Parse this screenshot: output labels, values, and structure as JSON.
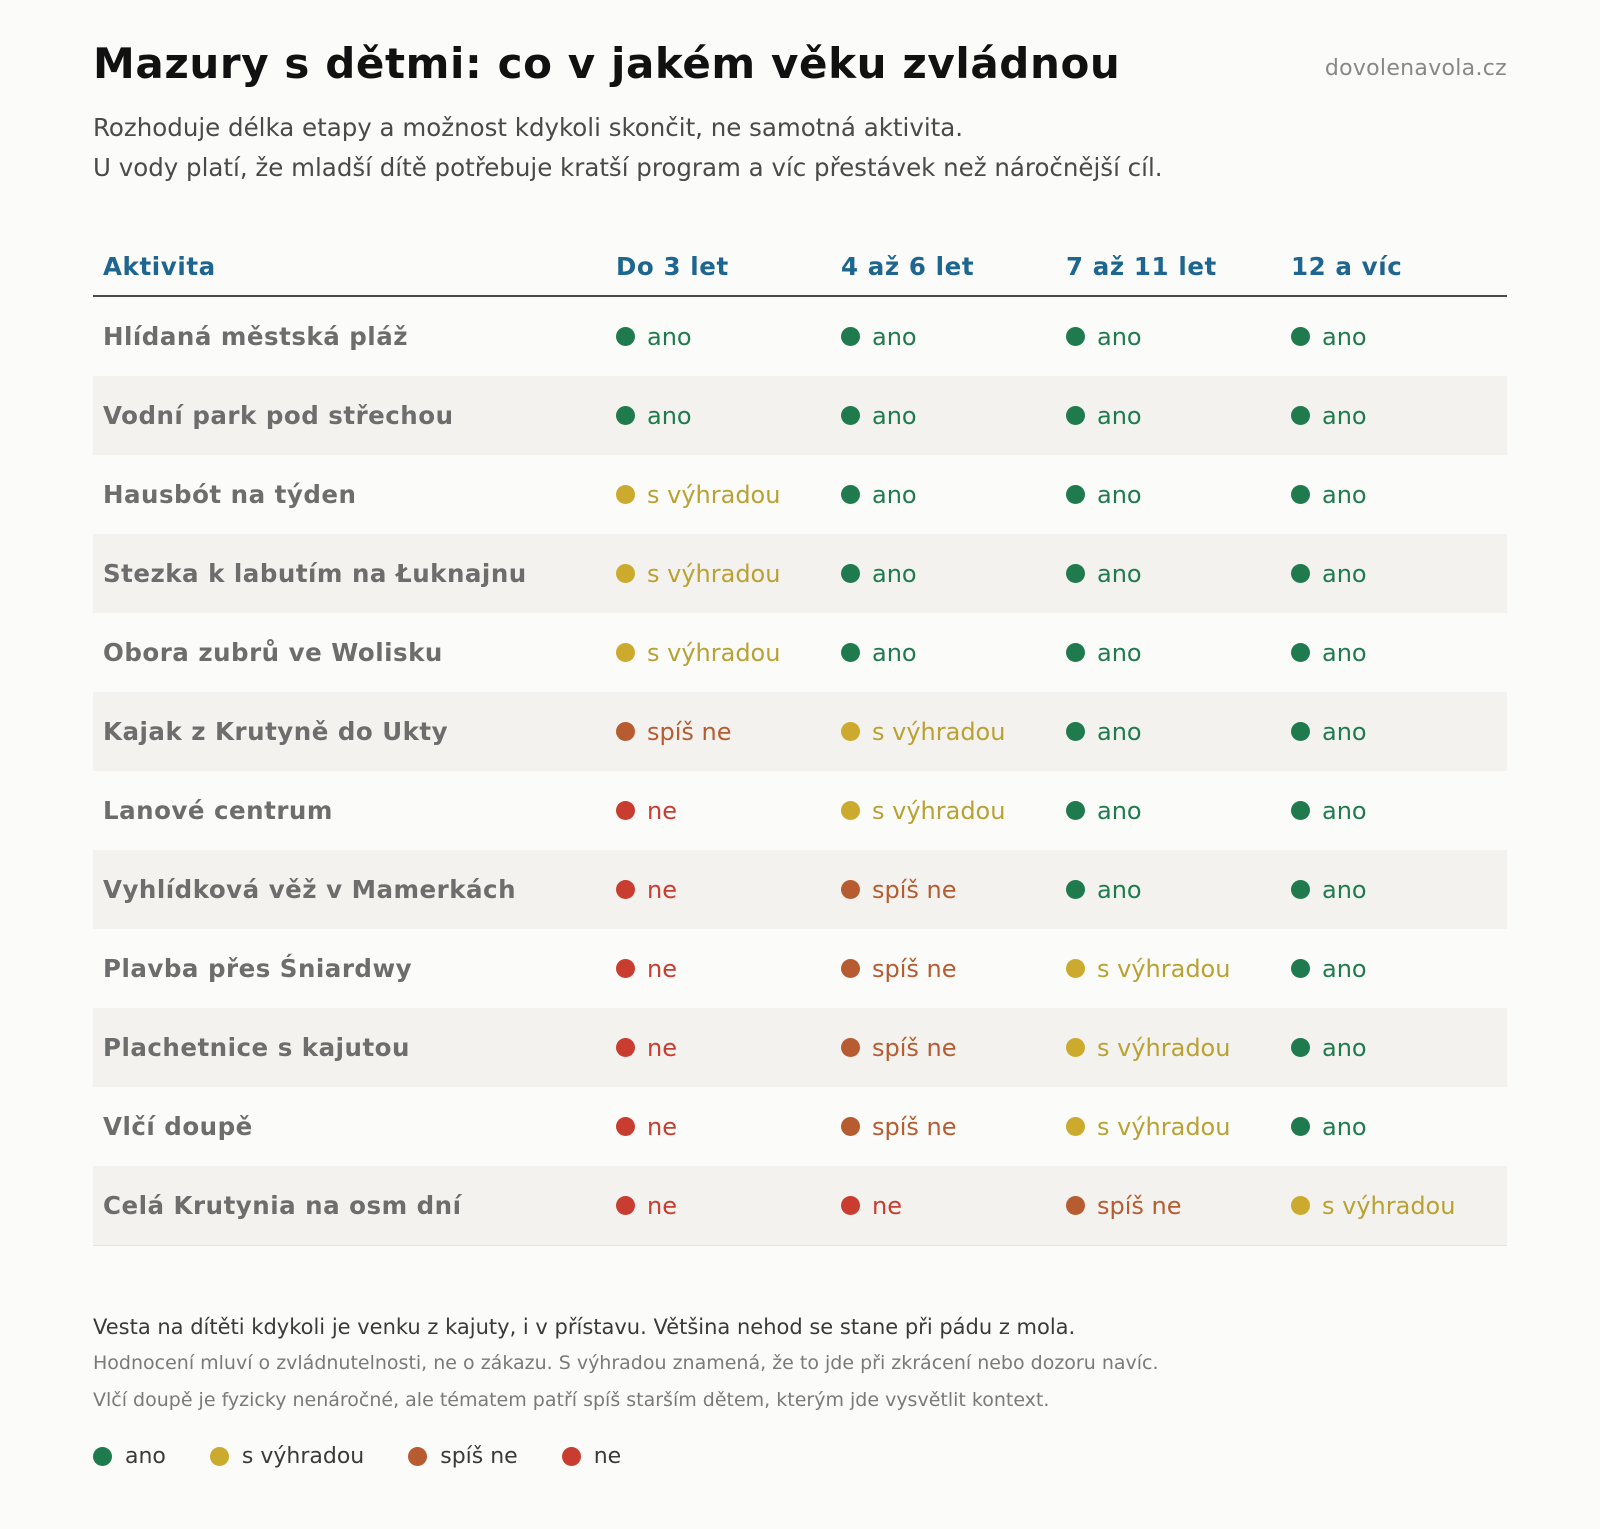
{
  "header": {
    "title": "Mazury s dětmi: co v jakém věku zvládnou",
    "site": "dovolenavola.cz",
    "subtitle_lines": [
      "Rozhoduje délka etapy a možnost kdykoli skončit, ne samotná aktivita.",
      "U vody platí, že mladší dítě potřebuje kratší program a víc přestávek než náročnější cíl."
    ]
  },
  "table": {
    "columns": [
      "Aktivita",
      "Do 3 let",
      "4 až 6 let",
      "7 až 11 let",
      "12 a víc"
    ],
    "rows": [
      {
        "activity": "Hlídaná městská pláž",
        "ratings": [
          "ano",
          "ano",
          "ano",
          "ano"
        ]
      },
      {
        "activity": "Vodní park pod střechou",
        "ratings": [
          "ano",
          "ano",
          "ano",
          "ano"
        ]
      },
      {
        "activity": "Hausbót na týden",
        "ratings": [
          "s výhradou",
          "ano",
          "ano",
          "ano"
        ]
      },
      {
        "activity": "Stezka k labutím na Łuknajnu",
        "ratings": [
          "s výhradou",
          "ano",
          "ano",
          "ano"
        ]
      },
      {
        "activity": "Obora zubrů ve Wolisku",
        "ratings": [
          "s výhradou",
          "ano",
          "ano",
          "ano"
        ]
      },
      {
        "activity": "Kajak z Krutyně do Ukty",
        "ratings": [
          "spíš ne",
          "s výhradou",
          "ano",
          "ano"
        ]
      },
      {
        "activity": "Lanové centrum",
        "ratings": [
          "ne",
          "s výhradou",
          "ano",
          "ano"
        ]
      },
      {
        "activity": "Vyhlídková věž v Mamerkách",
        "ratings": [
          "ne",
          "spíš ne",
          "ano",
          "ano"
        ]
      },
      {
        "activity": "Plavba přes Śniardwy",
        "ratings": [
          "ne",
          "spíš ne",
          "s výhradou",
          "ano"
        ]
      },
      {
        "activity": "Plachetnice s kajutou",
        "ratings": [
          "ne",
          "spíš ne",
          "s výhradou",
          "ano"
        ]
      },
      {
        "activity": "Vlčí doupě",
        "ratings": [
          "ne",
          "spíš ne",
          "s výhradou",
          "ano"
        ]
      },
      {
        "activity": "Celá Krutynia na osm dní",
        "ratings": [
          "ne",
          "ne",
          "spíš ne",
          "s výhradou"
        ]
      }
    ]
  },
  "notes": {
    "main": "Vesta na dítěti kdykoli je venku z kajuty, i v přístavu. Většina nehod se stane při pádu z mola.",
    "secondary": [
      "Hodnocení mluví o zvládnutelnosti, ne o zákazu. S výhradou znamená, že to jde při zkrácení nebo dozoru navíc.",
      "Vlčí doupě je fyzicky nenáročné, ale tématem patří spíš starším dětem, kterým jde vysvětlit kontext."
    ]
  },
  "legend": [
    "ano",
    "s výhradou",
    "spíš ne",
    "ne"
  ],
  "colors": {
    "ano": "#1f7b4d",
    "s výhradou": "#ccaa2e",
    "spíš ne": "#b65c30",
    "ne": "#c93d31",
    "header_text": "#1e6690"
  }
}
